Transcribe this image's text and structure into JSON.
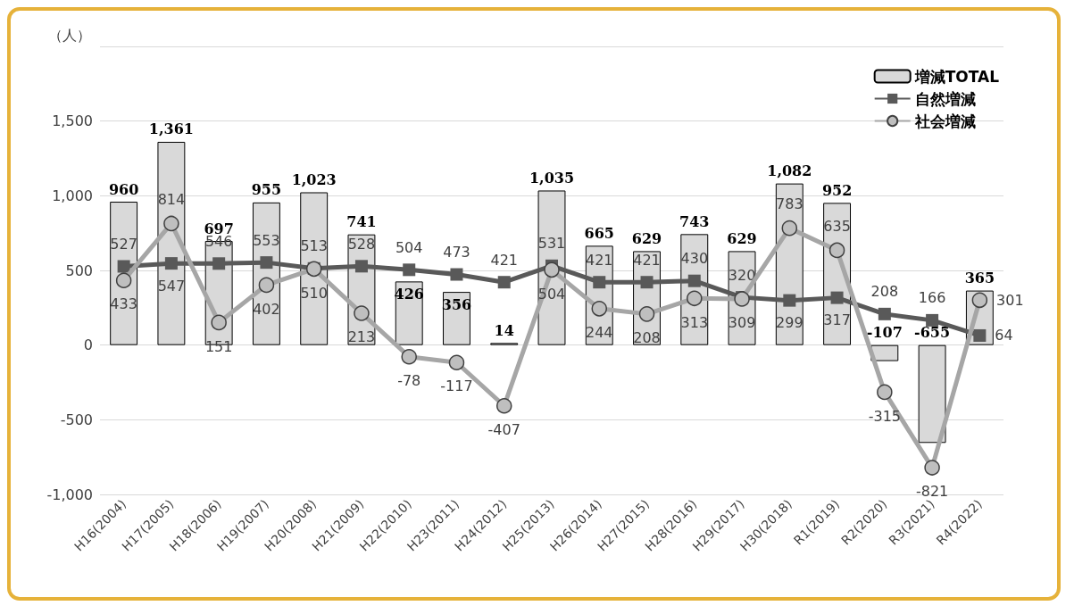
{
  "chart_data": {
    "type": "bar",
    "ylabel": "（人）",
    "categories": [
      "H16(2004)",
      "H17(2005)",
      "H18(2006)",
      "H19(2007)",
      "H20(2008)",
      "H21(2009)",
      "H22(2010)",
      "H23(2011)",
      "H24(2012)",
      "H25(2013)",
      "H26(2014)",
      "H27(2015)",
      "H28(2016)",
      "H29(2017)",
      "H30(2018)",
      "R1(2019)",
      "R2(2020)",
      "R3(2021)",
      "R4(2022)"
    ],
    "series": [
      {
        "name": "増減TOTAL",
        "color": "#d9d9d9",
        "values": [
          960,
          1361,
          697,
          955,
          1023,
          741,
          426,
          356,
          14,
          1035,
          665,
          629,
          743,
          629,
          1082,
          952,
          -107,
          -655,
          365
        ],
        "value_labels": [
          "960",
          "1,361",
          "697",
          "955",
          "1,023",
          "741",
          "426",
          "356",
          "14",
          "1,035",
          "665",
          "629",
          "743",
          "629",
          "1,082",
          "952",
          "-107",
          "-655",
          "365"
        ]
      },
      {
        "name": "自然増減",
        "type": "line",
        "color": "#595959",
        "marker": "square",
        "values": [
          527,
          547,
          546,
          553,
          513,
          528,
          504,
          473,
          421,
          531,
          421,
          421,
          430,
          320,
          299,
          317,
          208,
          166,
          64
        ]
      },
      {
        "name": "社会増減",
        "type": "line",
        "color": "#a6a6a6",
        "marker": "circle",
        "values": [
          433,
          814,
          151,
          402,
          510,
          213,
          -78,
          -117,
          -407,
          504,
          244,
          208,
          313,
          309,
          783,
          635,
          -315,
          -821,
          301
        ]
      }
    ],
    "ylim": [
      -1000,
      2000
    ],
    "yticks": [
      {
        "value": -1000,
        "label": "-1,000"
      },
      -500,
      0,
      500,
      {
        "value": 1000,
        "label": "1,000"
      },
      {
        "value": 1500,
        "label": "1,500"
      },
      {
        "value": 2000,
        "label": null
      }
    ],
    "grid": "y",
    "legend": "top right",
    "data_labels": true
  }
}
